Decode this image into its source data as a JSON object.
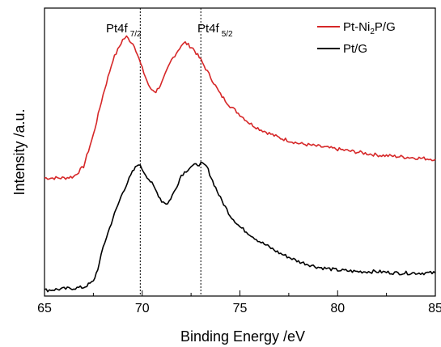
{
  "chart_data": {
    "type": "line",
    "title": "",
    "xlabel": "Binding Energy /eV",
    "ylabel": "Intensity /a.u.",
    "xlim": [
      65,
      85
    ],
    "ylim": [
      0,
      1
    ],
    "x_ticks": [
      "65",
      "70",
      "75",
      "80",
      "85"
    ],
    "y_ticks_shown": false,
    "grid": false,
    "legend_position": "top-right",
    "colors": {
      "Pt-Ni2P/G": "#d62728",
      "Pt/G": "#000000"
    },
    "series": [
      {
        "name": "Pt-Ni2P/G",
        "x": [
          65.0,
          66.0,
          66.5,
          67.0,
          67.5,
          68.0,
          68.5,
          69.0,
          69.2,
          69.6,
          70.0,
          70.4,
          70.7,
          71.0,
          71.5,
          72.0,
          72.2,
          72.6,
          73.0,
          73.5,
          74.0,
          74.5,
          75.0,
          75.5,
          76.0,
          77.0,
          78.0,
          79.0,
          80.0,
          81.0,
          82.0,
          83.0,
          84.0,
          85.0
        ],
        "y": [
          0.41,
          0.41,
          0.415,
          0.45,
          0.56,
          0.7,
          0.82,
          0.89,
          0.9,
          0.87,
          0.79,
          0.72,
          0.71,
          0.74,
          0.82,
          0.87,
          0.88,
          0.86,
          0.82,
          0.76,
          0.7,
          0.66,
          0.63,
          0.6,
          0.58,
          0.55,
          0.53,
          0.52,
          0.51,
          0.5,
          0.49,
          0.485,
          0.48,
          0.475
        ]
      },
      {
        "name": "Pt/G",
        "x": [
          65.0,
          66.0,
          67.0,
          67.5,
          67.8,
          68.0,
          68.5,
          69.0,
          69.5,
          69.8,
          70.0,
          70.5,
          71.0,
          71.3,
          71.7,
          72.0,
          72.5,
          73.0,
          73.3,
          73.6,
          74.0,
          74.5,
          75.0,
          76.0,
          77.0,
          78.0,
          79.0,
          80.0,
          81.0,
          82.0,
          83.0,
          84.0,
          85.0
        ],
        "y": [
          0.02,
          0.025,
          0.03,
          0.05,
          0.11,
          0.17,
          0.27,
          0.36,
          0.43,
          0.46,
          0.44,
          0.39,
          0.33,
          0.32,
          0.37,
          0.42,
          0.45,
          0.46,
          0.45,
          0.4,
          0.34,
          0.28,
          0.24,
          0.19,
          0.15,
          0.12,
          0.1,
          0.09,
          0.085,
          0.085,
          0.08,
          0.08,
          0.08
        ]
      }
    ],
    "reference_lines": [
      {
        "label": "Pt4f",
        "sub": "7/2",
        "x": 69.9
      },
      {
        "label": "Pt4f",
        "sub": "5/2",
        "x": 73.0
      }
    ]
  },
  "legend": [
    {
      "main": "Pt-Ni",
      "sub": "2",
      "rest": "P/G"
    },
    {
      "main": "Pt/G",
      "sub": "",
      "rest": ""
    }
  ]
}
